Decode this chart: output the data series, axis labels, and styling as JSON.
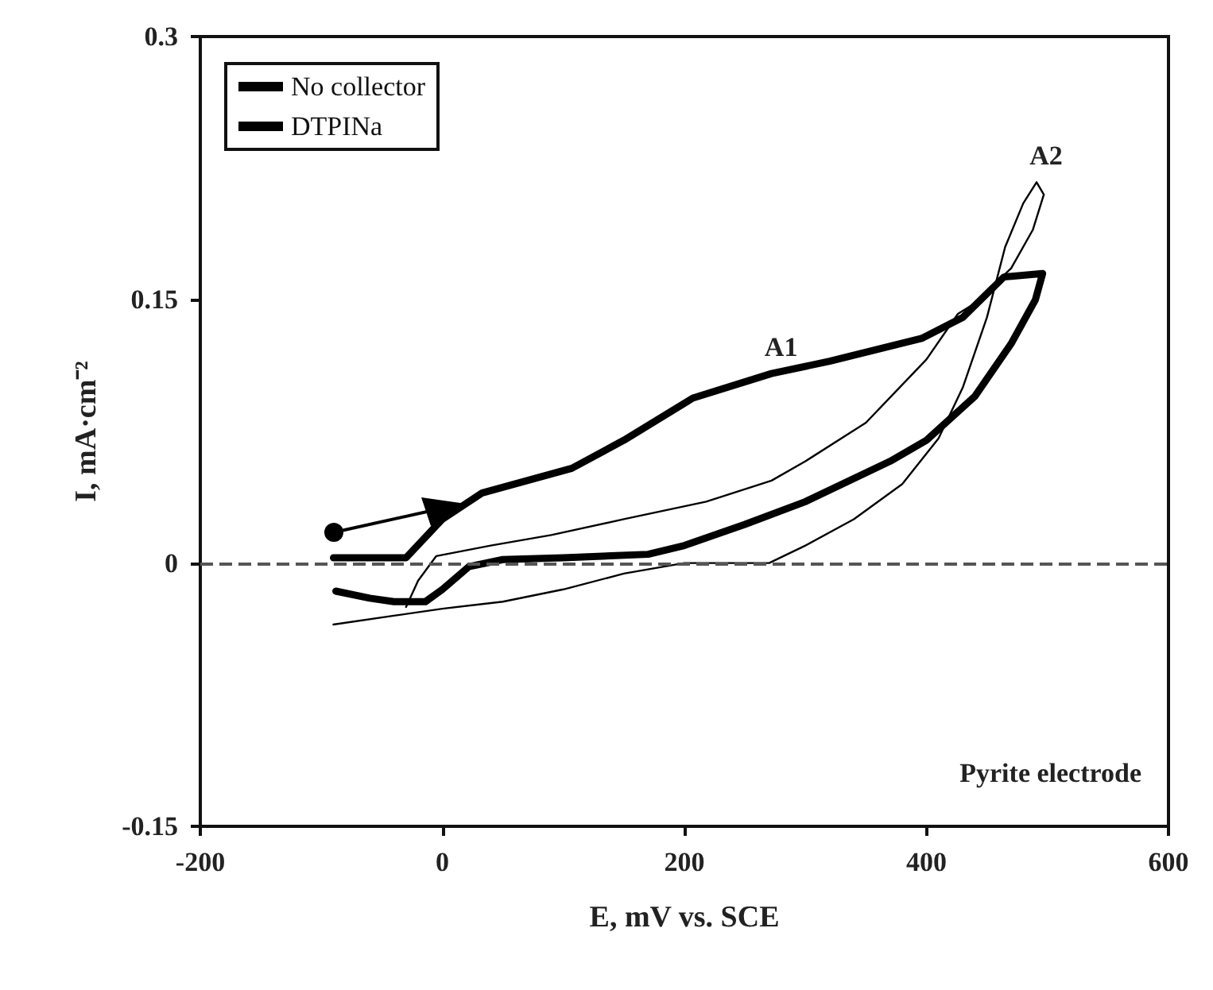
{
  "chart_data": {
    "type": "line",
    "xlabel": "E, mV vs. SCE",
    "ylabel": "I, mA·cm⁻²",
    "xlim": [
      -200,
      600
    ],
    "ylim": [
      -0.15,
      0.3
    ],
    "xticks": [
      -200,
      0,
      200,
      400,
      600
    ],
    "yticks": [
      -0.15,
      0,
      0.15,
      0.3
    ],
    "grid": false,
    "legend": "top left",
    "marker": "none",
    "line_style": "solid",
    "series": [
      {
        "name": "No collector",
        "color": "#000000",
        "x": [
          -90,
          -40,
          0,
          50,
          100,
          150,
          200,
          270,
          300,
          340,
          380,
          410,
          430,
          450,
          465,
          480,
          491,
          497,
          488,
          470,
          440,
          426,
          400,
          350,
          300,
          272,
          218,
          150,
          90,
          40,
          -5,
          -20,
          -30
        ],
        "values": [
          -0.035,
          -0.03,
          -0.026,
          -0.022,
          -0.015,
          -0.006,
          0,
          0,
          0.01,
          0.025,
          0.045,
          0.071,
          0.1,
          0.14,
          0.18,
          0.205,
          0.217,
          0.21,
          0.19,
          0.168,
          0.148,
          0.142,
          0.116,
          0.08,
          0.058,
          0.047,
          0.035,
          0.025,
          0.016,
          0.01,
          0.004,
          -0.01,
          -0.025
        ]
      },
      {
        "name": "DTPINa",
        "color": "#000000",
        "x": [
          -90,
          -30,
          0,
          33,
          107,
          150,
          207,
          272,
          320,
          396,
          430,
          464,
          496,
          490,
          470,
          440,
          400,
          370,
          300,
          250,
          200,
          170,
          100,
          50,
          22,
          0,
          -14,
          -40,
          -60,
          -88
        ],
        "values": [
          0.003,
          0.003,
          0.025,
          0.04,
          0.054,
          0.07,
          0.094,
          0.108,
          0.115,
          0.128,
          0.14,
          0.163,
          0.165,
          0.15,
          0.125,
          0.095,
          0.07,
          0.058,
          0.035,
          0.022,
          0.01,
          0.005,
          0.003,
          0.002,
          -0.002,
          -0.015,
          -0.022,
          -0.022,
          -0.02,
          -0.016
        ]
      }
    ],
    "ref_lines": [
      {
        "axis": "y",
        "value": 0,
        "color": "#555555",
        "line_style": "dashed"
      }
    ],
    "annotations": [
      {
        "text": "A1",
        "x": 272,
        "y": 0.108
      },
      {
        "text": "A2",
        "x": 491,
        "y": 0.217
      },
      "Pyrite electrode"
    ]
  }
}
